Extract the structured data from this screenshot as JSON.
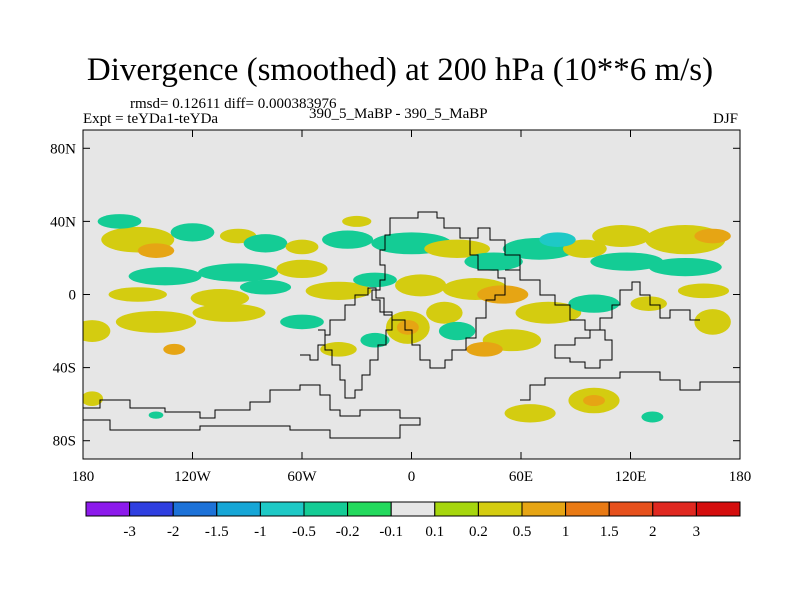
{
  "title": "Divergence (smoothed) at 200 hPa (10**6 m/s)",
  "stats": "rmsd= 0.12611 diff= 0.000383976",
  "experiment": "Expt = teYDa1-teYDa",
  "comparison": "390_5_MaBP - 390_5_MaBP",
  "season": "DJF",
  "chart_data": {
    "type": "heatmap",
    "projection": "cylindrical-equidistant",
    "field": "Divergence (smoothed) at 200 hPa",
    "units": "10**6 m/s",
    "xlim": [
      -180,
      180
    ],
    "ylim": [
      -90,
      90
    ],
    "x_ticks": [
      {
        "value": -180,
        "label": "180"
      },
      {
        "value": -120,
        "label": "120W"
      },
      {
        "value": -60,
        "label": "60W"
      },
      {
        "value": 0,
        "label": "0"
      },
      {
        "value": 60,
        "label": "60E"
      },
      {
        "value": 120,
        "label": "120E"
      },
      {
        "value": 180,
        "label": "180"
      }
    ],
    "y_ticks": [
      {
        "value": 80,
        "label": "80N"
      },
      {
        "value": 40,
        "label": "40N"
      },
      {
        "value": 0,
        "label": "0"
      },
      {
        "value": -40,
        "label": "40S"
      },
      {
        "value": -80,
        "label": "80S"
      }
    ],
    "colorbar": {
      "levels": [
        "-3",
        "-2",
        "-1.5",
        "-1",
        "-0.5",
        "-0.2",
        "-0.1",
        "0.1",
        "0.2",
        "0.5",
        "1",
        "1.5",
        "2",
        "3"
      ],
      "colors": [
        "#8c1aeb",
        "#2f3fe0",
        "#1d72d8",
        "#16a6d6",
        "#1ec9c6",
        "#14cc95",
        "#23d95d",
        "#e6e6e6",
        "#a6d60d",
        "#d4cc10",
        "#e6a514",
        "#e97a14",
        "#e6501c",
        "#e02820",
        "#d40d0d"
      ]
    },
    "features": [
      {
        "lon": -150,
        "lat": 30,
        "rx": 20,
        "ry": 7,
        "value": 0.3
      },
      {
        "lon": -140,
        "lat": 24,
        "rx": 10,
        "ry": 4,
        "value": 0.6
      },
      {
        "lon": -160,
        "lat": 40,
        "rx": 12,
        "ry": 4,
        "value": -0.3
      },
      {
        "lon": -120,
        "lat": 34,
        "rx": 12,
        "ry": 5,
        "value": -0.3
      },
      {
        "lon": -95,
        "lat": 32,
        "rx": 10,
        "ry": 4,
        "value": 0.3
      },
      {
        "lon": -80,
        "lat": 28,
        "rx": 12,
        "ry": 5,
        "value": -0.3
      },
      {
        "lon": -60,
        "lat": 26,
        "rx": 9,
        "ry": 4,
        "value": 0.3
      },
      {
        "lon": -35,
        "lat": 30,
        "rx": 14,
        "ry": 5,
        "value": -0.3
      },
      {
        "lon": -30,
        "lat": 40,
        "rx": 8,
        "ry": 3,
        "value": 0.3
      },
      {
        "lon": -135,
        "lat": 10,
        "rx": 20,
        "ry": 5,
        "value": -0.3
      },
      {
        "lon": -95,
        "lat": 12,
        "rx": 22,
        "ry": 5,
        "value": -0.3
      },
      {
        "lon": -60,
        "lat": 14,
        "rx": 14,
        "ry": 5,
        "value": 0.3
      },
      {
        "lon": -150,
        "lat": 0,
        "rx": 16,
        "ry": 4,
        "value": 0.3
      },
      {
        "lon": -105,
        "lat": -2,
        "rx": 16,
        "ry": 5,
        "value": 0.3
      },
      {
        "lon": -80,
        "lat": 4,
        "rx": 14,
        "ry": 4,
        "value": -0.3
      },
      {
        "lon": -40,
        "lat": 2,
        "rx": 18,
        "ry": 5,
        "value": 0.3
      },
      {
        "lon": -20,
        "lat": 8,
        "rx": 12,
        "ry": 4,
        "value": -0.3
      },
      {
        "lon": -140,
        "lat": -15,
        "rx": 22,
        "ry": 6,
        "value": 0.3
      },
      {
        "lon": -100,
        "lat": -10,
        "rx": 20,
        "ry": 5,
        "value": 0.3
      },
      {
        "lon": -60,
        "lat": -15,
        "rx": 12,
        "ry": 4,
        "value": -0.3
      },
      {
        "lon": -175,
        "lat": -20,
        "rx": 10,
        "ry": 6,
        "value": 0.3
      },
      {
        "lon": -130,
        "lat": -30,
        "rx": 6,
        "ry": 3,
        "value": 0.6
      },
      {
        "lon": -40,
        "lat": -30,
        "rx": 10,
        "ry": 4,
        "value": 0.3
      },
      {
        "lon": -20,
        "lat": -25,
        "rx": 8,
        "ry": 4,
        "value": -0.3
      },
      {
        "lon": 0,
        "lat": 28,
        "rx": 22,
        "ry": 6,
        "value": -0.3
      },
      {
        "lon": 25,
        "lat": 25,
        "rx": 18,
        "ry": 5,
        "value": 0.3
      },
      {
        "lon": 5,
        "lat": 5,
        "rx": 14,
        "ry": 6,
        "value": 0.3
      },
      {
        "lon": -2,
        "lat": -18,
        "rx": 12,
        "ry": 9,
        "value": 0.3
      },
      {
        "lon": -2,
        "lat": -18,
        "rx": 6,
        "ry": 4,
        "value": 0.6
      },
      {
        "lon": 18,
        "lat": -10,
        "rx": 10,
        "ry": 6,
        "value": 0.3
      },
      {
        "lon": 35,
        "lat": 3,
        "rx": 18,
        "ry": 6,
        "value": 0.3
      },
      {
        "lon": 50,
        "lat": 0,
        "rx": 14,
        "ry": 5,
        "value": 0.6
      },
      {
        "lon": 45,
        "lat": 18,
        "rx": 16,
        "ry": 5,
        "value": -0.3
      },
      {
        "lon": 70,
        "lat": 25,
        "rx": 20,
        "ry": 6,
        "value": -0.3
      },
      {
        "lon": 95,
        "lat": 25,
        "rx": 12,
        "ry": 5,
        "value": 0.3
      },
      {
        "lon": 80,
        "lat": 30,
        "rx": 10,
        "ry": 4,
        "value": -0.6
      },
      {
        "lon": 115,
        "lat": 32,
        "rx": 16,
        "ry": 6,
        "value": 0.3
      },
      {
        "lon": 118,
        "lat": 18,
        "rx": 20,
        "ry": 5,
        "value": -0.3
      },
      {
        "lon": 150,
        "lat": 30,
        "rx": 22,
        "ry": 8,
        "value": 0.3
      },
      {
        "lon": 165,
        "lat": 32,
        "rx": 10,
        "ry": 4,
        "value": 0.6
      },
      {
        "lon": 150,
        "lat": 15,
        "rx": 20,
        "ry": 5,
        "value": -0.3
      },
      {
        "lon": 160,
        "lat": 2,
        "rx": 14,
        "ry": 4,
        "value": 0.3
      },
      {
        "lon": 75,
        "lat": -10,
        "rx": 18,
        "ry": 6,
        "value": 0.3
      },
      {
        "lon": 100,
        "lat": -5,
        "rx": 14,
        "ry": 5,
        "value": -0.3
      },
      {
        "lon": 130,
        "lat": -5,
        "rx": 10,
        "ry": 4,
        "value": 0.3
      },
      {
        "lon": 165,
        "lat": -15,
        "rx": 10,
        "ry": 7,
        "value": 0.3
      },
      {
        "lon": 55,
        "lat": -25,
        "rx": 16,
        "ry": 6,
        "value": 0.3
      },
      {
        "lon": 40,
        "lat": -30,
        "rx": 10,
        "ry": 4,
        "value": 0.6
      },
      {
        "lon": 25,
        "lat": -20,
        "rx": 10,
        "ry": 5,
        "value": -0.3
      },
      {
        "lon": 65,
        "lat": -65,
        "rx": 14,
        "ry": 5,
        "value": 0.3
      },
      {
        "lon": 100,
        "lat": -58,
        "rx": 14,
        "ry": 7,
        "value": 0.3
      },
      {
        "lon": 100,
        "lat": -58,
        "rx": 6,
        "ry": 3,
        "value": 0.6
      },
      {
        "lon": 132,
        "lat": -67,
        "rx": 6,
        "ry": 3,
        "value": -0.3
      },
      {
        "lon": -175,
        "lat": -57,
        "rx": 6,
        "ry": 4,
        "value": 0.3
      },
      {
        "lon": -140,
        "lat": -66,
        "rx": 4,
        "ry": 2,
        "value": -0.3
      }
    ]
  }
}
